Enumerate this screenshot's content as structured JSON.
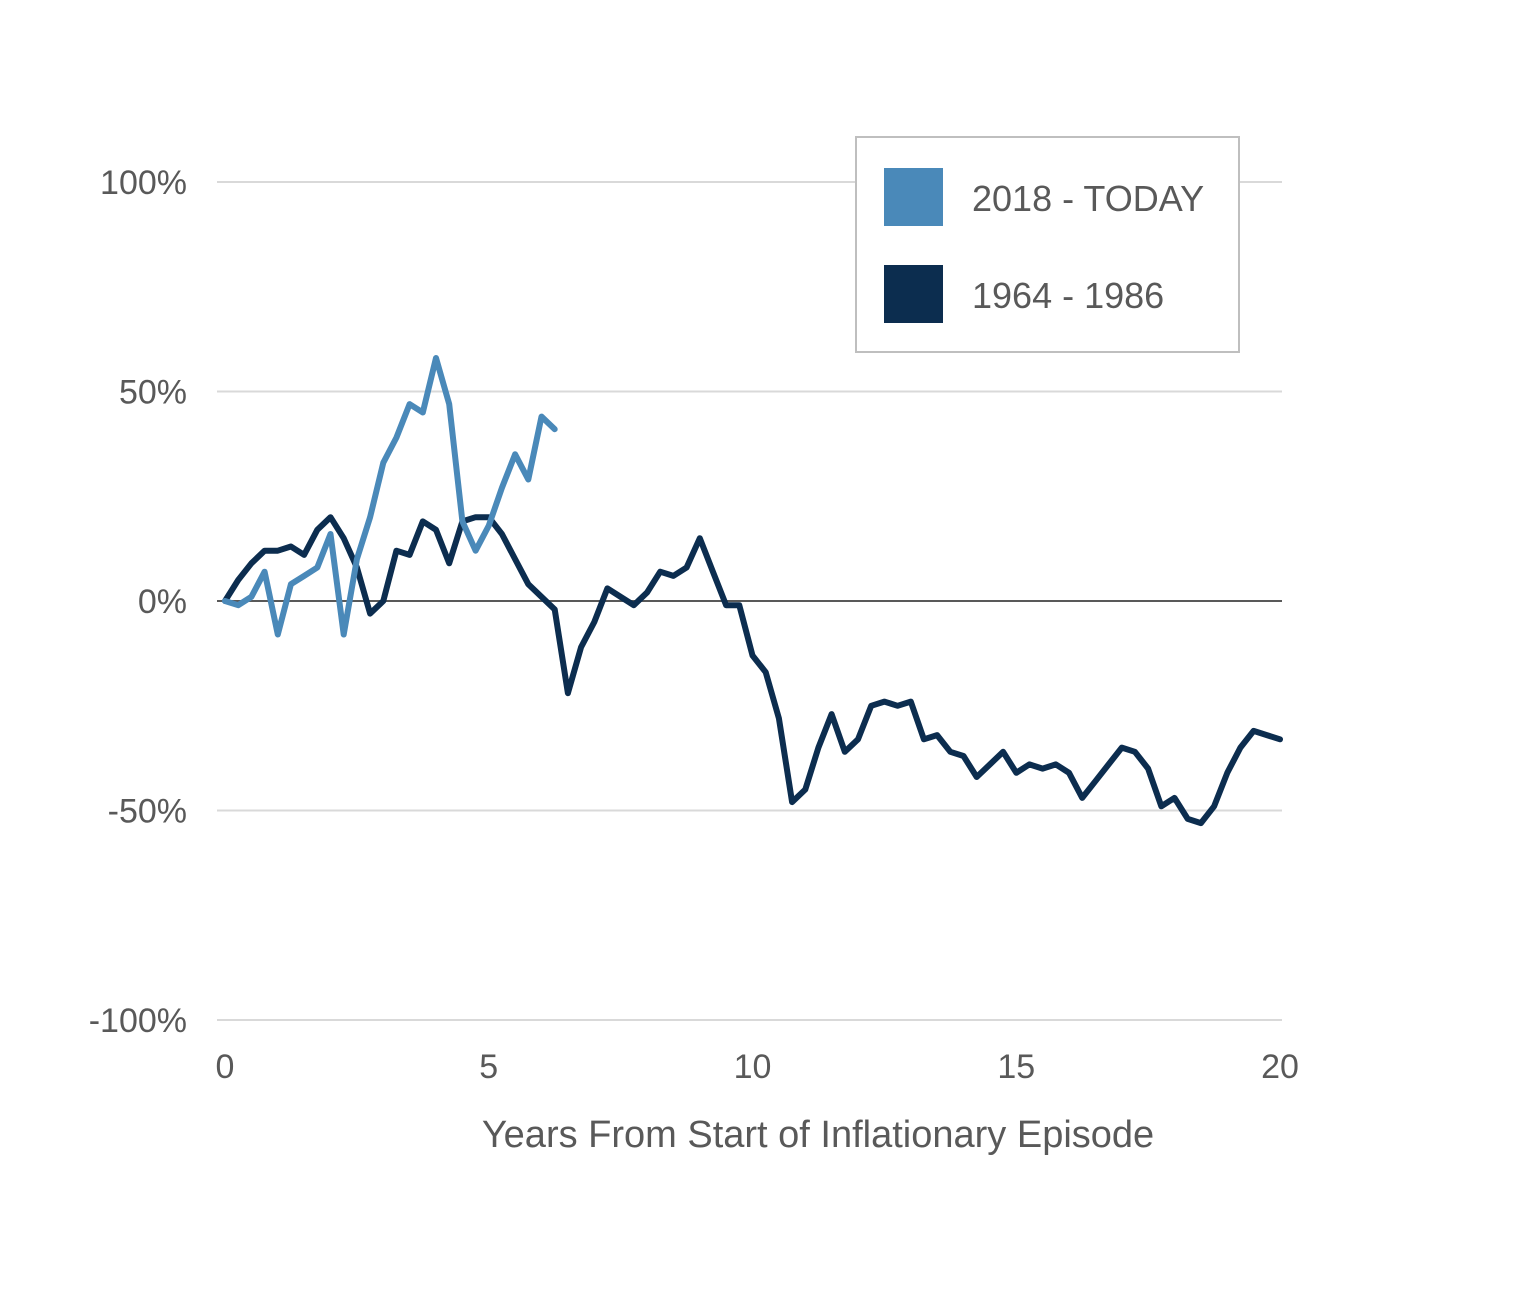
{
  "chart_data": {
    "type": "line",
    "title": "",
    "xlabel": "Years From Start of Inflationary  Episode",
    "ylabel": "",
    "xlim": [
      0,
      20
    ],
    "ylim": [
      -100,
      100
    ],
    "x_ticks": [
      0,
      5,
      10,
      15,
      20
    ],
    "x_tick_labels": [
      "0",
      "5",
      "10",
      "15",
      "20"
    ],
    "y_ticks": [
      100,
      50,
      0,
      -50,
      -100
    ],
    "y_tick_labels": [
      "100%",
      "50%",
      "0%",
      "-50%",
      "-100%"
    ],
    "grid": true,
    "legend_position": "top-right",
    "series": [
      {
        "name": "2018 - TODAY",
        "color": "#4a89b9",
        "points": [
          [
            0.0,
            0
          ],
          [
            0.25,
            -1
          ],
          [
            0.5,
            1
          ],
          [
            0.75,
            7
          ],
          [
            1.0,
            -8
          ],
          [
            1.25,
            4
          ],
          [
            1.5,
            6
          ],
          [
            1.75,
            8
          ],
          [
            2.0,
            16
          ],
          [
            2.25,
            -8
          ],
          [
            2.5,
            10
          ],
          [
            2.75,
            20
          ],
          [
            3.0,
            33
          ],
          [
            3.25,
            39
          ],
          [
            3.5,
            47
          ],
          [
            3.75,
            45
          ],
          [
            4.0,
            58
          ],
          [
            4.25,
            47
          ],
          [
            4.5,
            19
          ],
          [
            4.75,
            12
          ],
          [
            5.0,
            18
          ],
          [
            5.25,
            27
          ],
          [
            5.5,
            35
          ],
          [
            5.75,
            29
          ],
          [
            6.0,
            44
          ],
          [
            6.25,
            41
          ]
        ]
      },
      {
        "name": "1964 - 1986",
        "color": "#0c2d4f",
        "points": [
          [
            0.0,
            0
          ],
          [
            0.25,
            5
          ],
          [
            0.5,
            9
          ],
          [
            0.75,
            12
          ],
          [
            1.0,
            12
          ],
          [
            1.25,
            13
          ],
          [
            1.5,
            11
          ],
          [
            1.75,
            17
          ],
          [
            2.0,
            20
          ],
          [
            2.25,
            15
          ],
          [
            2.5,
            8
          ],
          [
            2.75,
            -3
          ],
          [
            3.0,
            0
          ],
          [
            3.25,
            12
          ],
          [
            3.5,
            11
          ],
          [
            3.75,
            19
          ],
          [
            4.0,
            17
          ],
          [
            4.25,
            9
          ],
          [
            4.5,
            19
          ],
          [
            4.75,
            20
          ],
          [
            5.0,
            20
          ],
          [
            5.25,
            16
          ],
          [
            5.5,
            10
          ],
          [
            5.75,
            4
          ],
          [
            6.0,
            1
          ],
          [
            6.25,
            -2
          ],
          [
            6.5,
            -22
          ],
          [
            6.75,
            -11
          ],
          [
            7.0,
            -5
          ],
          [
            7.25,
            3
          ],
          [
            7.5,
            1
          ],
          [
            7.75,
            -1
          ],
          [
            8.0,
            2
          ],
          [
            8.25,
            7
          ],
          [
            8.5,
            6
          ],
          [
            8.75,
            8
          ],
          [
            9.0,
            15
          ],
          [
            9.25,
            7
          ],
          [
            9.5,
            -1
          ],
          [
            9.75,
            -1
          ],
          [
            10.0,
            -13
          ],
          [
            10.25,
            -17
          ],
          [
            10.5,
            -28
          ],
          [
            10.75,
            -48
          ],
          [
            11.0,
            -45
          ],
          [
            11.25,
            -35
          ],
          [
            11.5,
            -27
          ],
          [
            11.75,
            -36
          ],
          [
            12.0,
            -33
          ],
          [
            12.25,
            -25
          ],
          [
            12.5,
            -24
          ],
          [
            12.75,
            -25
          ],
          [
            13.0,
            -24
          ],
          [
            13.25,
            -33
          ],
          [
            13.5,
            -32
          ],
          [
            13.75,
            -36
          ],
          [
            14.0,
            -37
          ],
          [
            14.25,
            -42
          ],
          [
            14.5,
            -39
          ],
          [
            14.75,
            -36
          ],
          [
            15.0,
            -41
          ],
          [
            15.25,
            -39
          ],
          [
            15.5,
            -40
          ],
          [
            15.75,
            -39
          ],
          [
            16.0,
            -41
          ],
          [
            16.25,
            -47
          ],
          [
            16.5,
            -43
          ],
          [
            16.75,
            -39
          ],
          [
            17.0,
            -35
          ],
          [
            17.25,
            -36
          ],
          [
            17.5,
            -40
          ],
          [
            17.75,
            -49
          ],
          [
            18.0,
            -47
          ],
          [
            18.25,
            -52
          ],
          [
            18.5,
            -53
          ],
          [
            18.75,
            -49
          ],
          [
            19.0,
            -41
          ],
          [
            19.25,
            -35
          ],
          [
            19.5,
            -31
          ],
          [
            19.75,
            -32
          ],
          [
            20.0,
            -33
          ]
        ]
      }
    ]
  }
}
